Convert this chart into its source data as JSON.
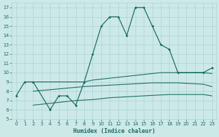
{
  "xlabel": "Humidex (Indice chaleur)",
  "bg_color": "#cce9e7",
  "grid_color": "#aad4d1",
  "line_color": "#1a6b65",
  "ylim": [
    5,
    17.5
  ],
  "xlim": [
    -0.5,
    23.5
  ],
  "yticks": [
    5,
    6,
    7,
    8,
    9,
    10,
    11,
    12,
    13,
    14,
    15,
    16,
    17
  ],
  "xticks": [
    0,
    1,
    2,
    3,
    4,
    5,
    6,
    7,
    8,
    9,
    10,
    11,
    12,
    13,
    14,
    15,
    16,
    17,
    18,
    19,
    20,
    21,
    22,
    23
  ],
  "main_x": [
    0,
    1,
    2,
    4,
    5,
    6,
    7,
    8,
    9,
    10,
    11,
    12,
    13,
    14,
    15,
    16,
    17,
    18,
    19,
    22,
    23
  ],
  "main_y": [
    7.5,
    9.0,
    9.0,
    6.0,
    7.5,
    7.5,
    6.5,
    9.0,
    12.0,
    15.0,
    16.0,
    16.0,
    14.0,
    17.0,
    17.0,
    15.0,
    13.0,
    12.5,
    10.0,
    10.0,
    10.5
  ],
  "upper_x": [
    2,
    8,
    9,
    10,
    11,
    12,
    13,
    14,
    15,
    16,
    17,
    18,
    19,
    20,
    21,
    22,
    23
  ],
  "upper_y": [
    9.0,
    9.0,
    9.2,
    9.3,
    9.4,
    9.5,
    9.6,
    9.7,
    9.8,
    9.9,
    10.0,
    10.0,
    10.0,
    10.0,
    10.0,
    10.0,
    9.9
  ],
  "mid_x": [
    2,
    8,
    9,
    10,
    11,
    12,
    13,
    14,
    15,
    16,
    17,
    18,
    19,
    20,
    21,
    22,
    23
  ],
  "mid_y": [
    8.0,
    8.5,
    8.55,
    8.6,
    8.65,
    8.7,
    8.75,
    8.8,
    8.85,
    8.9,
    8.9,
    8.9,
    8.9,
    8.85,
    8.8,
    8.75,
    8.5
  ],
  "low_x": [
    2,
    7,
    8,
    9,
    10,
    11,
    12,
    13,
    14,
    15,
    16,
    17,
    18,
    19,
    20,
    21,
    22,
    23
  ],
  "low_y": [
    6.5,
    7.0,
    7.05,
    7.1,
    7.2,
    7.3,
    7.35,
    7.4,
    7.45,
    7.5,
    7.55,
    7.6,
    7.65,
    7.65,
    7.65,
    7.65,
    7.65,
    7.5
  ]
}
